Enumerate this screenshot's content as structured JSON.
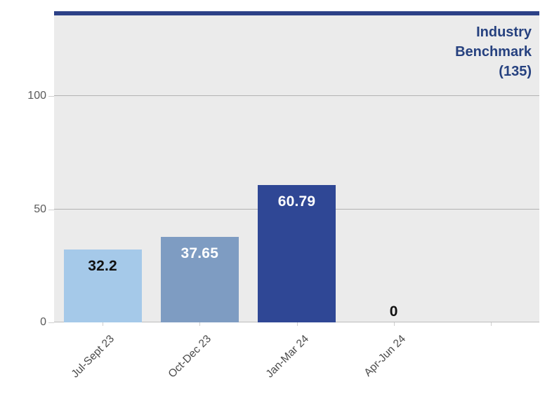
{
  "chart_data": {
    "type": "bar",
    "categories": [
      "Jul-Sept 23",
      "Oct-Dec 23",
      "Jan-Mar 24",
      "Apr-Jun 24"
    ],
    "values": [
      32.2,
      37.65,
      60.79,
      0
    ],
    "value_labels": [
      "32.2",
      "37.65",
      "60.79",
      "0"
    ],
    "bar_colors": [
      "#a5c9e9",
      "#7e9cc2",
      "#2f4795",
      null
    ],
    "value_label_colors": [
      "#111111",
      "#ffffff",
      "#ffffff",
      "#111111"
    ],
    "title": "",
    "xlabel": "",
    "ylabel": "",
    "ylim": [
      0,
      135.6
    ],
    "yticks": [
      0,
      50,
      100
    ],
    "x_slots": 5,
    "grid": "horizontal",
    "legend_position": "none",
    "benchmark": {
      "value": 135,
      "label_lines": [
        "Industry",
        "Benchmark",
        "(135)"
      ]
    },
    "colors": {
      "plot_bg": "#ebebeb",
      "gridline": "#b3b3b3",
      "baseline": "#bcbcbc",
      "tick": "#cfcfcf",
      "y_label_text": "#5a5a5a",
      "x_label_text": "#4a4a4a",
      "benchmark_line": "#2c4187",
      "benchmark_text": "#26417f"
    }
  }
}
